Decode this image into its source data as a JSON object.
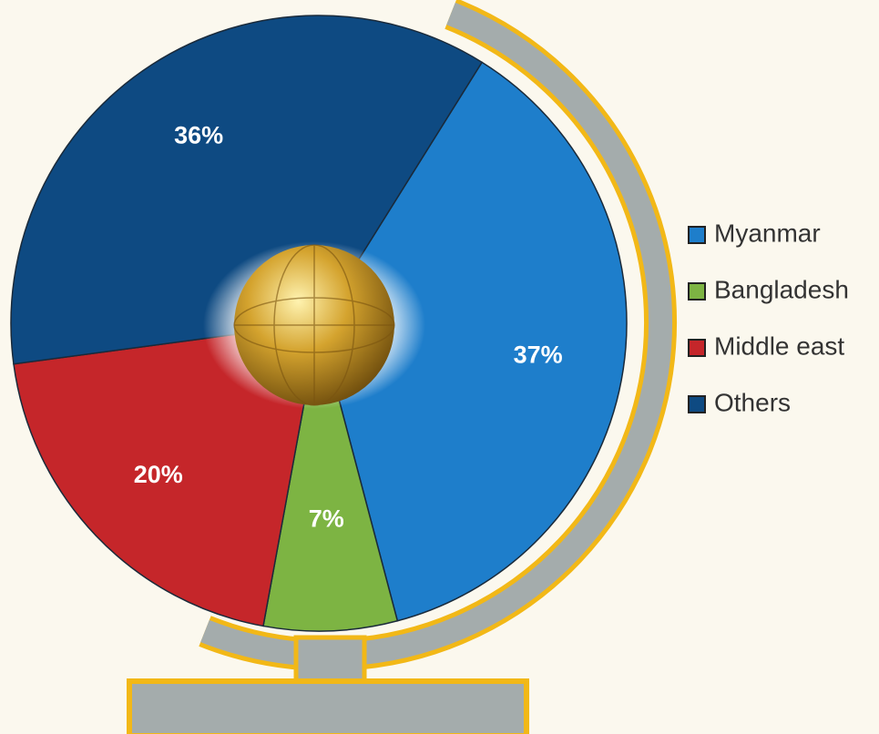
{
  "chart_data": {
    "type": "pie",
    "categories": [
      "Myanmar",
      "Bangladesh",
      "Middle east",
      "Others"
    ],
    "values": [
      37,
      7,
      20,
      36
    ],
    "value_labels": [
      "37%",
      "7%",
      "20%",
      "36%"
    ],
    "colors": [
      "#1e7ecb",
      "#7db443",
      "#c5262a",
      "#0e4a82"
    ],
    "legend": "right"
  }
}
